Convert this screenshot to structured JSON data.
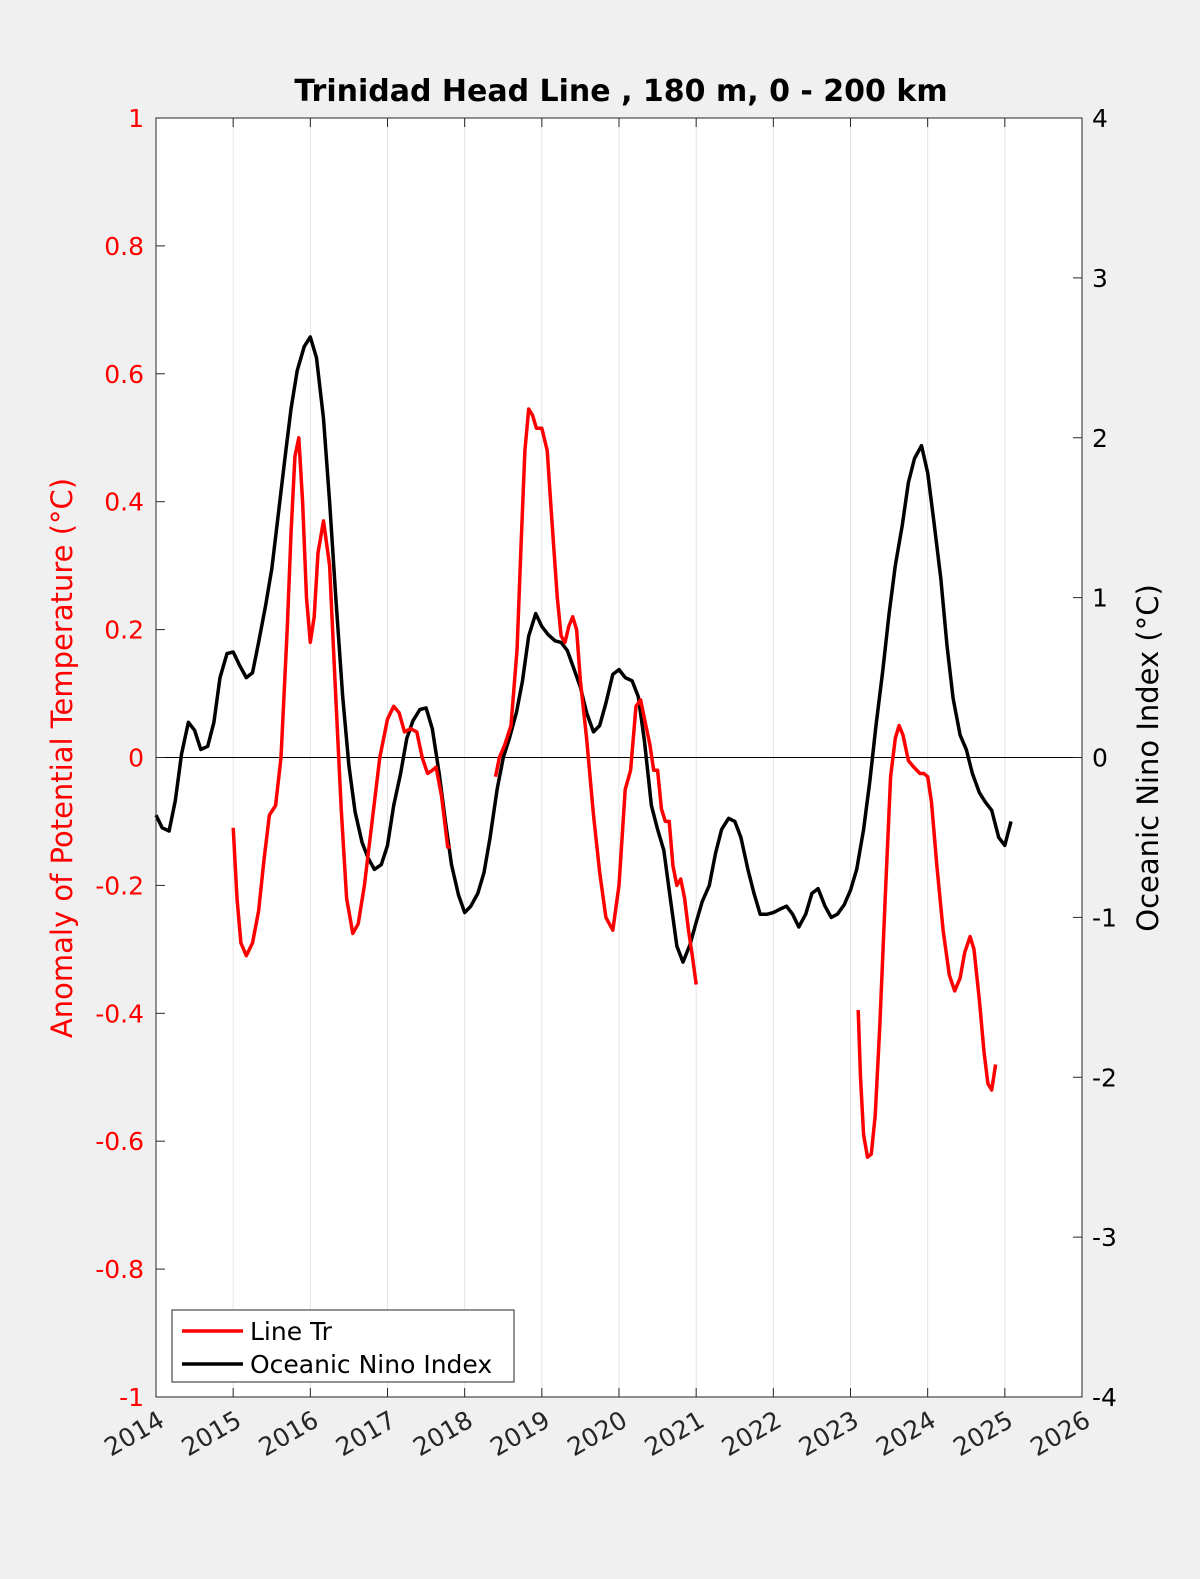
{
  "chart_data": {
    "type": "line",
    "title": "Trinidad Head Line , 180 m, 0 - 200 km",
    "xlabel": "",
    "ylabel_left": "Anomaly of Potential Temperature (°C)",
    "ylabel_right": "Oceanic Nino Index (°C)",
    "xlim": [
      2014,
      2026
    ],
    "ylim_left": [
      -1,
      1
    ],
    "ylim_right": [
      -4,
      4
    ],
    "grid": "vertical",
    "legend_position": "bottom-left",
    "x_ticks": [
      "2014",
      "2015",
      "2016",
      "2017",
      "2018",
      "2019",
      "2020",
      "2021",
      "2022",
      "2023",
      "2024",
      "2025",
      "2026"
    ],
    "y_left_ticks": [
      "-1",
      "-0.8",
      "-0.6",
      "-0.4",
      "-0.2",
      "0",
      "0.2",
      "0.4",
      "0.6",
      "0.8",
      "1"
    ],
    "y_right_ticks": [
      "-4",
      "-3",
      "-2",
      "-1",
      "0",
      "1",
      "2",
      "3",
      "4"
    ],
    "colors": {
      "line_tr": "#ff0000",
      "oni": "#000000",
      "left_axis": "#ff0000",
      "right_axis": "#000000"
    },
    "series": [
      {
        "name": "Line Tr",
        "axis": "left",
        "segments": [
          [
            [
              2015.0,
              -0.11
            ],
            [
              2015.05,
              -0.22
            ],
            [
              2015.1,
              -0.29
            ],
            [
              2015.17,
              -0.31
            ],
            [
              2015.25,
              -0.29
            ],
            [
              2015.33,
              -0.24
            ],
            [
              2015.4,
              -0.16
            ],
            [
              2015.47,
              -0.09
            ],
            [
              2015.55,
              -0.075
            ],
            [
              2015.62,
              0.0
            ],
            [
              2015.7,
              0.2
            ],
            [
              2015.75,
              0.35
            ],
            [
              2015.8,
              0.47
            ],
            [
              2015.85,
              0.5
            ],
            [
              2015.9,
              0.4
            ],
            [
              2015.95,
              0.25
            ],
            [
              2016.0,
              0.18
            ],
            [
              2016.05,
              0.22
            ],
            [
              2016.1,
              0.32
            ],
            [
              2016.17,
              0.37
            ],
            [
              2016.25,
              0.3
            ],
            [
              2016.32,
              0.12
            ],
            [
              2016.4,
              -0.08
            ],
            [
              2016.47,
              -0.22
            ],
            [
              2016.55,
              -0.275
            ],
            [
              2016.62,
              -0.26
            ],
            [
              2016.7,
              -0.2
            ],
            [
              2016.8,
              -0.1
            ],
            [
              2016.9,
              0.0
            ],
            [
              2017.0,
              0.06
            ],
            [
              2017.08,
              0.08
            ],
            [
              2017.15,
              0.07
            ],
            [
              2017.22,
              0.04
            ],
            [
              2017.3,
              0.045
            ],
            [
              2017.38,
              0.04
            ],
            [
              2017.45,
              0.0
            ],
            [
              2017.52,
              -0.025
            ],
            [
              2017.58,
              -0.02
            ],
            [
              2017.63,
              -0.015
            ],
            [
              2017.7,
              -0.06
            ],
            [
              2017.78,
              -0.14
            ],
            [
              2017.82,
              -0.14
            ]
          ],
          [
            [
              2018.4,
              -0.03
            ],
            [
              2018.45,
              0.0
            ],
            [
              2018.52,
              0.02
            ],
            [
              2018.6,
              0.05
            ],
            [
              2018.68,
              0.17
            ],
            [
              2018.73,
              0.33
            ],
            [
              2018.78,
              0.48
            ],
            [
              2018.83,
              0.545
            ],
            [
              2018.88,
              0.535
            ],
            [
              2018.93,
              0.515
            ],
            [
              2019.0,
              0.515
            ],
            [
              2019.07,
              0.48
            ],
            [
              2019.13,
              0.37
            ],
            [
              2019.2,
              0.25
            ],
            [
              2019.25,
              0.19
            ],
            [
              2019.3,
              0.18
            ],
            [
              2019.35,
              0.205
            ],
            [
              2019.4,
              0.22
            ],
            [
              2019.45,
              0.2
            ],
            [
              2019.5,
              0.12
            ],
            [
              2019.58,
              0.03
            ],
            [
              2019.67,
              -0.09
            ],
            [
              2019.75,
              -0.18
            ],
            [
              2019.83,
              -0.25
            ],
            [
              2019.92,
              -0.27
            ],
            [
              2020.0,
              -0.2
            ],
            [
              2020.08,
              -0.05
            ],
            [
              2020.15,
              -0.02
            ],
            [
              2020.22,
              0.08
            ],
            [
              2020.28,
              0.09
            ],
            [
              2020.33,
              0.06
            ],
            [
              2020.4,
              0.02
            ],
            [
              2020.45,
              -0.02
            ],
            [
              2020.5,
              -0.02
            ],
            [
              2020.55,
              -0.08
            ],
            [
              2020.6,
              -0.1
            ],
            [
              2020.65,
              -0.1
            ],
            [
              2020.7,
              -0.17
            ],
            [
              2020.75,
              -0.2
            ],
            [
              2020.8,
              -0.19
            ],
            [
              2020.85,
              -0.22
            ],
            [
              2020.9,
              -0.27
            ],
            [
              2020.95,
              -0.31
            ],
            [
              2021.0,
              -0.355
            ]
          ],
          [
            [
              2023.1,
              -0.395
            ],
            [
              2023.13,
              -0.5
            ],
            [
              2023.17,
              -0.59
            ],
            [
              2023.22,
              -0.625
            ],
            [
              2023.27,
              -0.62
            ],
            [
              2023.32,
              -0.56
            ],
            [
              2023.38,
              -0.42
            ],
            [
              2023.45,
              -0.22
            ],
            [
              2023.52,
              -0.03
            ],
            [
              2023.58,
              0.03
            ],
            [
              2023.63,
              0.05
            ],
            [
              2023.68,
              0.035
            ],
            [
              2023.75,
              -0.005
            ],
            [
              2023.82,
              -0.015
            ],
            [
              2023.9,
              -0.025
            ],
            [
              2023.95,
              -0.025
            ],
            [
              2024.0,
              -0.03
            ],
            [
              2024.05,
              -0.07
            ],
            [
              2024.12,
              -0.17
            ],
            [
              2024.2,
              -0.27
            ],
            [
              2024.28,
              -0.34
            ],
            [
              2024.35,
              -0.365
            ],
            [
              2024.42,
              -0.345
            ],
            [
              2024.48,
              -0.305
            ],
            [
              2024.55,
              -0.28
            ],
            [
              2024.6,
              -0.3
            ],
            [
              2024.67,
              -0.38
            ],
            [
              2024.73,
              -0.46
            ],
            [
              2024.78,
              -0.51
            ],
            [
              2024.83,
              -0.52
            ],
            [
              2024.88,
              -0.48
            ]
          ]
        ]
      },
      {
        "name": "Oceanic Nino Index",
        "axis": "right",
        "segments": [
          [
            [
              2014.0,
              -0.36
            ],
            [
              2014.08,
              -0.44
            ],
            [
              2014.17,
              -0.46
            ],
            [
              2014.25,
              -0.27
            ],
            [
              2014.33,
              0.02
            ],
            [
              2014.42,
              0.22
            ],
            [
              2014.5,
              0.17
            ],
            [
              2014.58,
              0.05
            ],
            [
              2014.67,
              0.07
            ],
            [
              2014.75,
              0.22
            ],
            [
              2014.83,
              0.5
            ],
            [
              2014.92,
              0.65
            ],
            [
              2015.0,
              0.66
            ],
            [
              2015.08,
              0.58
            ],
            [
              2015.17,
              0.5
            ],
            [
              2015.25,
              0.53
            ],
            [
              2015.33,
              0.72
            ],
            [
              2015.42,
              0.95
            ],
            [
              2015.5,
              1.18
            ],
            [
              2015.58,
              1.5
            ],
            [
              2015.67,
              1.87
            ],
            [
              2015.75,
              2.18
            ],
            [
              2015.83,
              2.42
            ],
            [
              2015.92,
              2.57
            ],
            [
              2016.0,
              2.63
            ],
            [
              2016.08,
              2.5
            ],
            [
              2016.17,
              2.12
            ],
            [
              2016.25,
              1.6
            ],
            [
              2016.33,
              1.0
            ],
            [
              2016.42,
              0.38
            ],
            [
              2016.5,
              -0.05
            ],
            [
              2016.58,
              -0.34
            ],
            [
              2016.67,
              -0.53
            ],
            [
              2016.75,
              -0.63
            ],
            [
              2016.83,
              -0.7
            ],
            [
              2016.92,
              -0.67
            ],
            [
              2017.0,
              -0.55
            ],
            [
              2017.08,
              -0.3
            ],
            [
              2017.17,
              -0.1
            ],
            [
              2017.25,
              0.12
            ],
            [
              2017.33,
              0.23
            ],
            [
              2017.42,
              0.3
            ],
            [
              2017.5,
              0.31
            ],
            [
              2017.58,
              0.18
            ],
            [
              2017.67,
              -0.1
            ],
            [
              2017.75,
              -0.4
            ],
            [
              2017.83,
              -0.67
            ],
            [
              2017.92,
              -0.86
            ],
            [
              2018.0,
              -0.97
            ],
            [
              2018.08,
              -0.93
            ],
            [
              2018.17,
              -0.85
            ],
            [
              2018.25,
              -0.72
            ],
            [
              2018.33,
              -0.5
            ],
            [
              2018.42,
              -0.2
            ],
            [
              2018.5,
              0.0
            ],
            [
              2018.58,
              0.12
            ],
            [
              2018.67,
              0.28
            ],
            [
              2018.75,
              0.48
            ],
            [
              2018.83,
              0.76
            ],
            [
              2018.92,
              0.9
            ],
            [
              2019.0,
              0.82
            ],
            [
              2019.08,
              0.77
            ],
            [
              2019.17,
              0.73
            ],
            [
              2019.25,
              0.72
            ],
            [
              2019.33,
              0.67
            ],
            [
              2019.42,
              0.55
            ],
            [
              2019.5,
              0.44
            ],
            [
              2019.58,
              0.28
            ],
            [
              2019.67,
              0.16
            ],
            [
              2019.75,
              0.2
            ],
            [
              2019.83,
              0.34
            ],
            [
              2019.92,
              0.52
            ],
            [
              2020.0,
              0.55
            ],
            [
              2020.08,
              0.5
            ],
            [
              2020.17,
              0.48
            ],
            [
              2020.25,
              0.38
            ],
            [
              2020.33,
              0.1
            ],
            [
              2020.42,
              -0.3
            ],
            [
              2020.5,
              -0.45
            ],
            [
              2020.58,
              -0.58
            ],
            [
              2020.67,
              -0.9
            ],
            [
              2020.75,
              -1.18
            ],
            [
              2020.83,
              -1.28
            ],
            [
              2020.92,
              -1.17
            ],
            [
              2021.0,
              -1.03
            ],
            [
              2021.08,
              -0.9
            ],
            [
              2021.17,
              -0.8
            ],
            [
              2021.25,
              -0.6
            ],
            [
              2021.33,
              -0.45
            ],
            [
              2021.42,
              -0.38
            ],
            [
              2021.5,
              -0.4
            ],
            [
              2021.58,
              -0.5
            ],
            [
              2021.67,
              -0.7
            ],
            [
              2021.75,
              -0.85
            ],
            [
              2021.83,
              -0.98
            ],
            [
              2021.92,
              -0.98
            ],
            [
              2022.0,
              -0.97
            ],
            [
              2022.08,
              -0.95
            ],
            [
              2022.17,
              -0.93
            ],
            [
              2022.25,
              -0.98
            ],
            [
              2022.33,
              -1.06
            ],
            [
              2022.42,
              -0.98
            ],
            [
              2022.5,
              -0.85
            ],
            [
              2022.58,
              -0.82
            ],
            [
              2022.67,
              -0.93
            ],
            [
              2022.75,
              -1.0
            ],
            [
              2022.83,
              -0.98
            ],
            [
              2022.92,
              -0.92
            ],
            [
              2023.0,
              -0.83
            ],
            [
              2023.08,
              -0.7
            ],
            [
              2023.17,
              -0.45
            ],
            [
              2023.25,
              -0.15
            ],
            [
              2023.33,
              0.2
            ],
            [
              2023.42,
              0.55
            ],
            [
              2023.5,
              0.9
            ],
            [
              2023.58,
              1.2
            ],
            [
              2023.67,
              1.45
            ],
            [
              2023.75,
              1.72
            ],
            [
              2023.83,
              1.87
            ],
            [
              2023.92,
              1.95
            ],
            [
              2024.0,
              1.78
            ],
            [
              2024.08,
              1.48
            ],
            [
              2024.17,
              1.12
            ],
            [
              2024.25,
              0.7
            ],
            [
              2024.33,
              0.37
            ],
            [
              2024.42,
              0.14
            ],
            [
              2024.5,
              0.05
            ],
            [
              2024.58,
              -0.1
            ],
            [
              2024.67,
              -0.22
            ],
            [
              2024.75,
              -0.28
            ],
            [
              2024.83,
              -0.33
            ],
            [
              2024.92,
              -0.5
            ],
            [
              2025.0,
              -0.55
            ],
            [
              2025.08,
              -0.4
            ]
          ]
        ]
      }
    ]
  }
}
